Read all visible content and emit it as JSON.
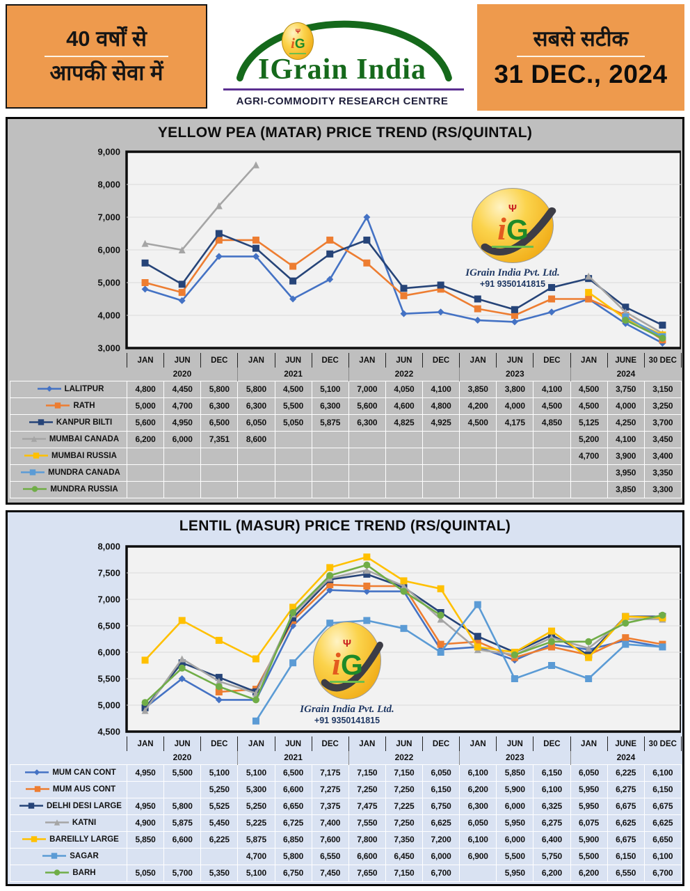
{
  "header": {
    "left_line1": "40 वर्षों से",
    "left_line2": "आपकी सेवा में",
    "brand": "IGrain India",
    "brand_sub": "AGRI-COMMODITY RESEARCH CENTRE",
    "right_line1": "सबसे सटीक",
    "right_date": "31 DEC., 2024"
  },
  "watermark": {
    "monogram_i": "i",
    "monogram_g": "G",
    "company": "IGrain India Pvt. Ltd.",
    "phone": "+91 9350141815"
  },
  "icons": {
    "wheat": "Ψ"
  },
  "colors": {
    "banner_orange": "#EE9A4D",
    "panel_top_bg": "#BFBFBF",
    "panel_bottom_bg": "#D9E2F2",
    "plot_bg": "#F2F2F2",
    "grid_line": "#DADADA",
    "brand_green": "#15691B",
    "brand_purple": "#5B2F91",
    "logo_yellow": "#F2B11D"
  },
  "chart_data": [
    {
      "type": "line",
      "title": "YELLOW PEA (MATAR) PRICE TREND (RS/QUINTAL)",
      "xlabel": "",
      "ylabel": "RS/QUINTAL",
      "ylim": [
        3000,
        9000
      ],
      "ystep": 1000,
      "grid": true,
      "legend_position": "table-left",
      "categories": [
        "JAN",
        "JUN",
        "DEC",
        "JAN",
        "JUN",
        "DEC",
        "JAN",
        "JUN",
        "DEC",
        "JAN",
        "JUN",
        "DEC",
        "JAN",
        "JUNE",
        "30 DEC"
      ],
      "year_groups": [
        {
          "label": "2020",
          "cols": 3
        },
        {
          "label": "2021",
          "cols": 3
        },
        {
          "label": "2022",
          "cols": 3
        },
        {
          "label": "2023",
          "cols": 3
        },
        {
          "label": "2024",
          "cols": 3
        }
      ],
      "series": [
        {
          "name": "LALITPUR",
          "color": "#4472C4",
          "marker": "diamond",
          "values": [
            4800,
            4450,
            5800,
            5800,
            4500,
            5100,
            7000,
            4050,
            4100,
            3850,
            3800,
            4100,
            4500,
            3750,
            3150
          ]
        },
        {
          "name": "RATH",
          "color": "#ED7D31",
          "marker": "square",
          "values": [
            5000,
            4700,
            6300,
            6300,
            5500,
            6300,
            5600,
            4600,
            4800,
            4200,
            4000,
            4500,
            4500,
            4000,
            3250
          ]
        },
        {
          "name": "KANPUR BILTI",
          "color": "#264478",
          "marker": "square",
          "values": [
            5600,
            4950,
            6500,
            6050,
            5050,
            5875,
            6300,
            4825,
            4925,
            4500,
            4175,
            4850,
            5125,
            4250,
            3700
          ]
        },
        {
          "name": "MUMBAI CANADA",
          "color": "#A5A5A5",
          "marker": "triangle",
          "values": [
            6200,
            6000,
            7351,
            8600,
            null,
            null,
            null,
            null,
            null,
            null,
            null,
            null,
            5200,
            4100,
            3450
          ]
        },
        {
          "name": "MUMBAI RUSSIA",
          "color": "#FFC000",
          "marker": "square",
          "values": [
            null,
            null,
            null,
            null,
            null,
            null,
            null,
            null,
            null,
            null,
            null,
            null,
            4700,
            3900,
            3400
          ]
        },
        {
          "name": "MUNDRA CANADA",
          "color": "#5B9BD5",
          "marker": "square",
          "values": [
            null,
            null,
            null,
            null,
            null,
            null,
            null,
            null,
            null,
            null,
            null,
            null,
            null,
            3950,
            3350
          ]
        },
        {
          "name": "MUNDRA RUSSIA",
          "color": "#70AD47",
          "marker": "circle",
          "values": [
            null,
            null,
            null,
            null,
            null,
            null,
            null,
            null,
            null,
            null,
            null,
            null,
            null,
            3850,
            3300
          ]
        }
      ]
    },
    {
      "type": "line",
      "title": "LENTIL (MASUR) PRICE TREND (RS/QUINTAL)",
      "xlabel": "",
      "ylabel": "RS/QUINTAL",
      "ylim": [
        4500,
        8000
      ],
      "ystep": 500,
      "grid": true,
      "legend_position": "table-left",
      "categories": [
        "JAN",
        "JUN",
        "DEC",
        "JAN",
        "JUN",
        "DEC",
        "JAN",
        "JUN",
        "DEC",
        "JAN",
        "JUN",
        "DEC",
        "JAN",
        "JUNE",
        "30 DEC"
      ],
      "year_groups": [
        {
          "label": "2020",
          "cols": 3
        },
        {
          "label": "2021",
          "cols": 3
        },
        {
          "label": "2022",
          "cols": 3
        },
        {
          "label": "2023",
          "cols": 3
        },
        {
          "label": "2024",
          "cols": 3
        }
      ],
      "series": [
        {
          "name": "MUM CAN CONT",
          "color": "#4472C4",
          "marker": "diamond",
          "values": [
            4950,
            5500,
            5100,
            5100,
            6500,
            7175,
            7150,
            7150,
            6050,
            6100,
            5850,
            6150,
            6050,
            6225,
            6100
          ]
        },
        {
          "name": "MUM AUS CONT",
          "color": "#ED7D31",
          "marker": "square",
          "values": [
            null,
            null,
            5250,
            5300,
            6600,
            7275,
            7250,
            7250,
            6150,
            6200,
            5900,
            6100,
            5950,
            6275,
            6150
          ]
        },
        {
          "name": "DELHI DESI LARGE",
          "color": "#264478",
          "marker": "square",
          "values": [
            4950,
            5800,
            5525,
            5250,
            6650,
            7375,
            7475,
            7225,
            6750,
            6300,
            6000,
            6325,
            5950,
            6675,
            6675
          ]
        },
        {
          "name": "KATNI",
          "color": "#A5A5A5",
          "marker": "triangle",
          "values": [
            4900,
            5875,
            5450,
            5225,
            6725,
            7400,
            7550,
            7250,
            6625,
            6050,
            5950,
            6275,
            6075,
            6625,
            6625
          ]
        },
        {
          "name": "BAREILLY LARGE",
          "color": "#FFC000",
          "marker": "square",
          "values": [
            5850,
            6600,
            6225,
            5875,
            6850,
            7600,
            7800,
            7350,
            7200,
            6100,
            6000,
            6400,
            5900,
            6675,
            6650
          ]
        },
        {
          "name": "SAGAR",
          "color": "#5B9BD5",
          "marker": "square",
          "values": [
            null,
            null,
            null,
            4700,
            5800,
            6550,
            6600,
            6450,
            6000,
            6900,
            5500,
            5750,
            5500,
            6150,
            6100
          ]
        },
        {
          "name": "BARH",
          "color": "#70AD47",
          "marker": "circle",
          "values": [
            5050,
            5700,
            5350,
            5100,
            6750,
            7450,
            7650,
            7150,
            6700,
            null,
            5950,
            6200,
            6200,
            6550,
            6700
          ]
        }
      ]
    }
  ]
}
